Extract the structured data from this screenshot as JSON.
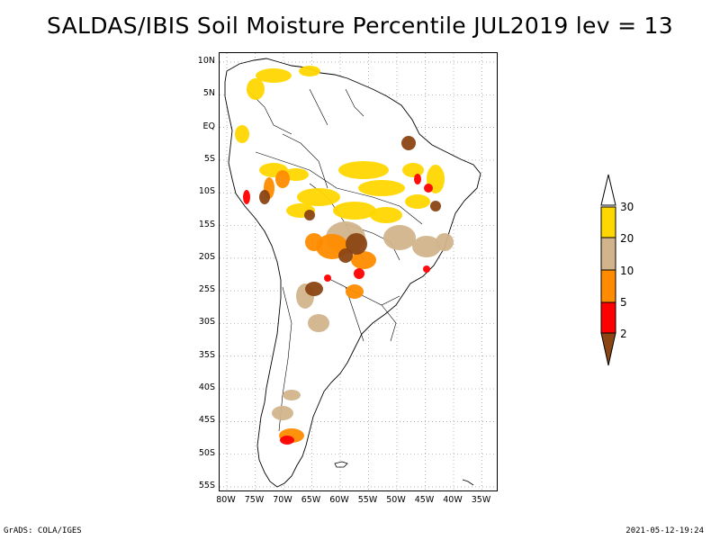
{
  "title": "SALDAS/IBIS Soil Moisture Percentile JUL2019 lev = 13",
  "map": {
    "lat_ticks": [
      "10N",
      "5N",
      "EQ",
      "5S",
      "10S",
      "15S",
      "20S",
      "25S",
      "30S",
      "35S",
      "40S",
      "45S",
      "50S",
      "55S"
    ],
    "lon_ticks": [
      "80W",
      "75W",
      "70W",
      "65W",
      "60W",
      "55W",
      "50W",
      "45W",
      "40W",
      "35W"
    ],
    "land_color": "#ffffff",
    "gridline_style": "dotted"
  },
  "legend": {
    "levels": [
      "2",
      "5",
      "10",
      "20",
      "30"
    ],
    "colors": {
      "lt2": "#8b4513",
      "2to5": "#ff0000",
      "5to10": "#ff8c00",
      "10to20": "#d2b48c",
      "20to30": "#ffd700",
      "gt30": "#ffffff"
    }
  },
  "footer": {
    "left": "GrADS: COLA/IGES",
    "right": "2021-05-12-19:24"
  }
}
